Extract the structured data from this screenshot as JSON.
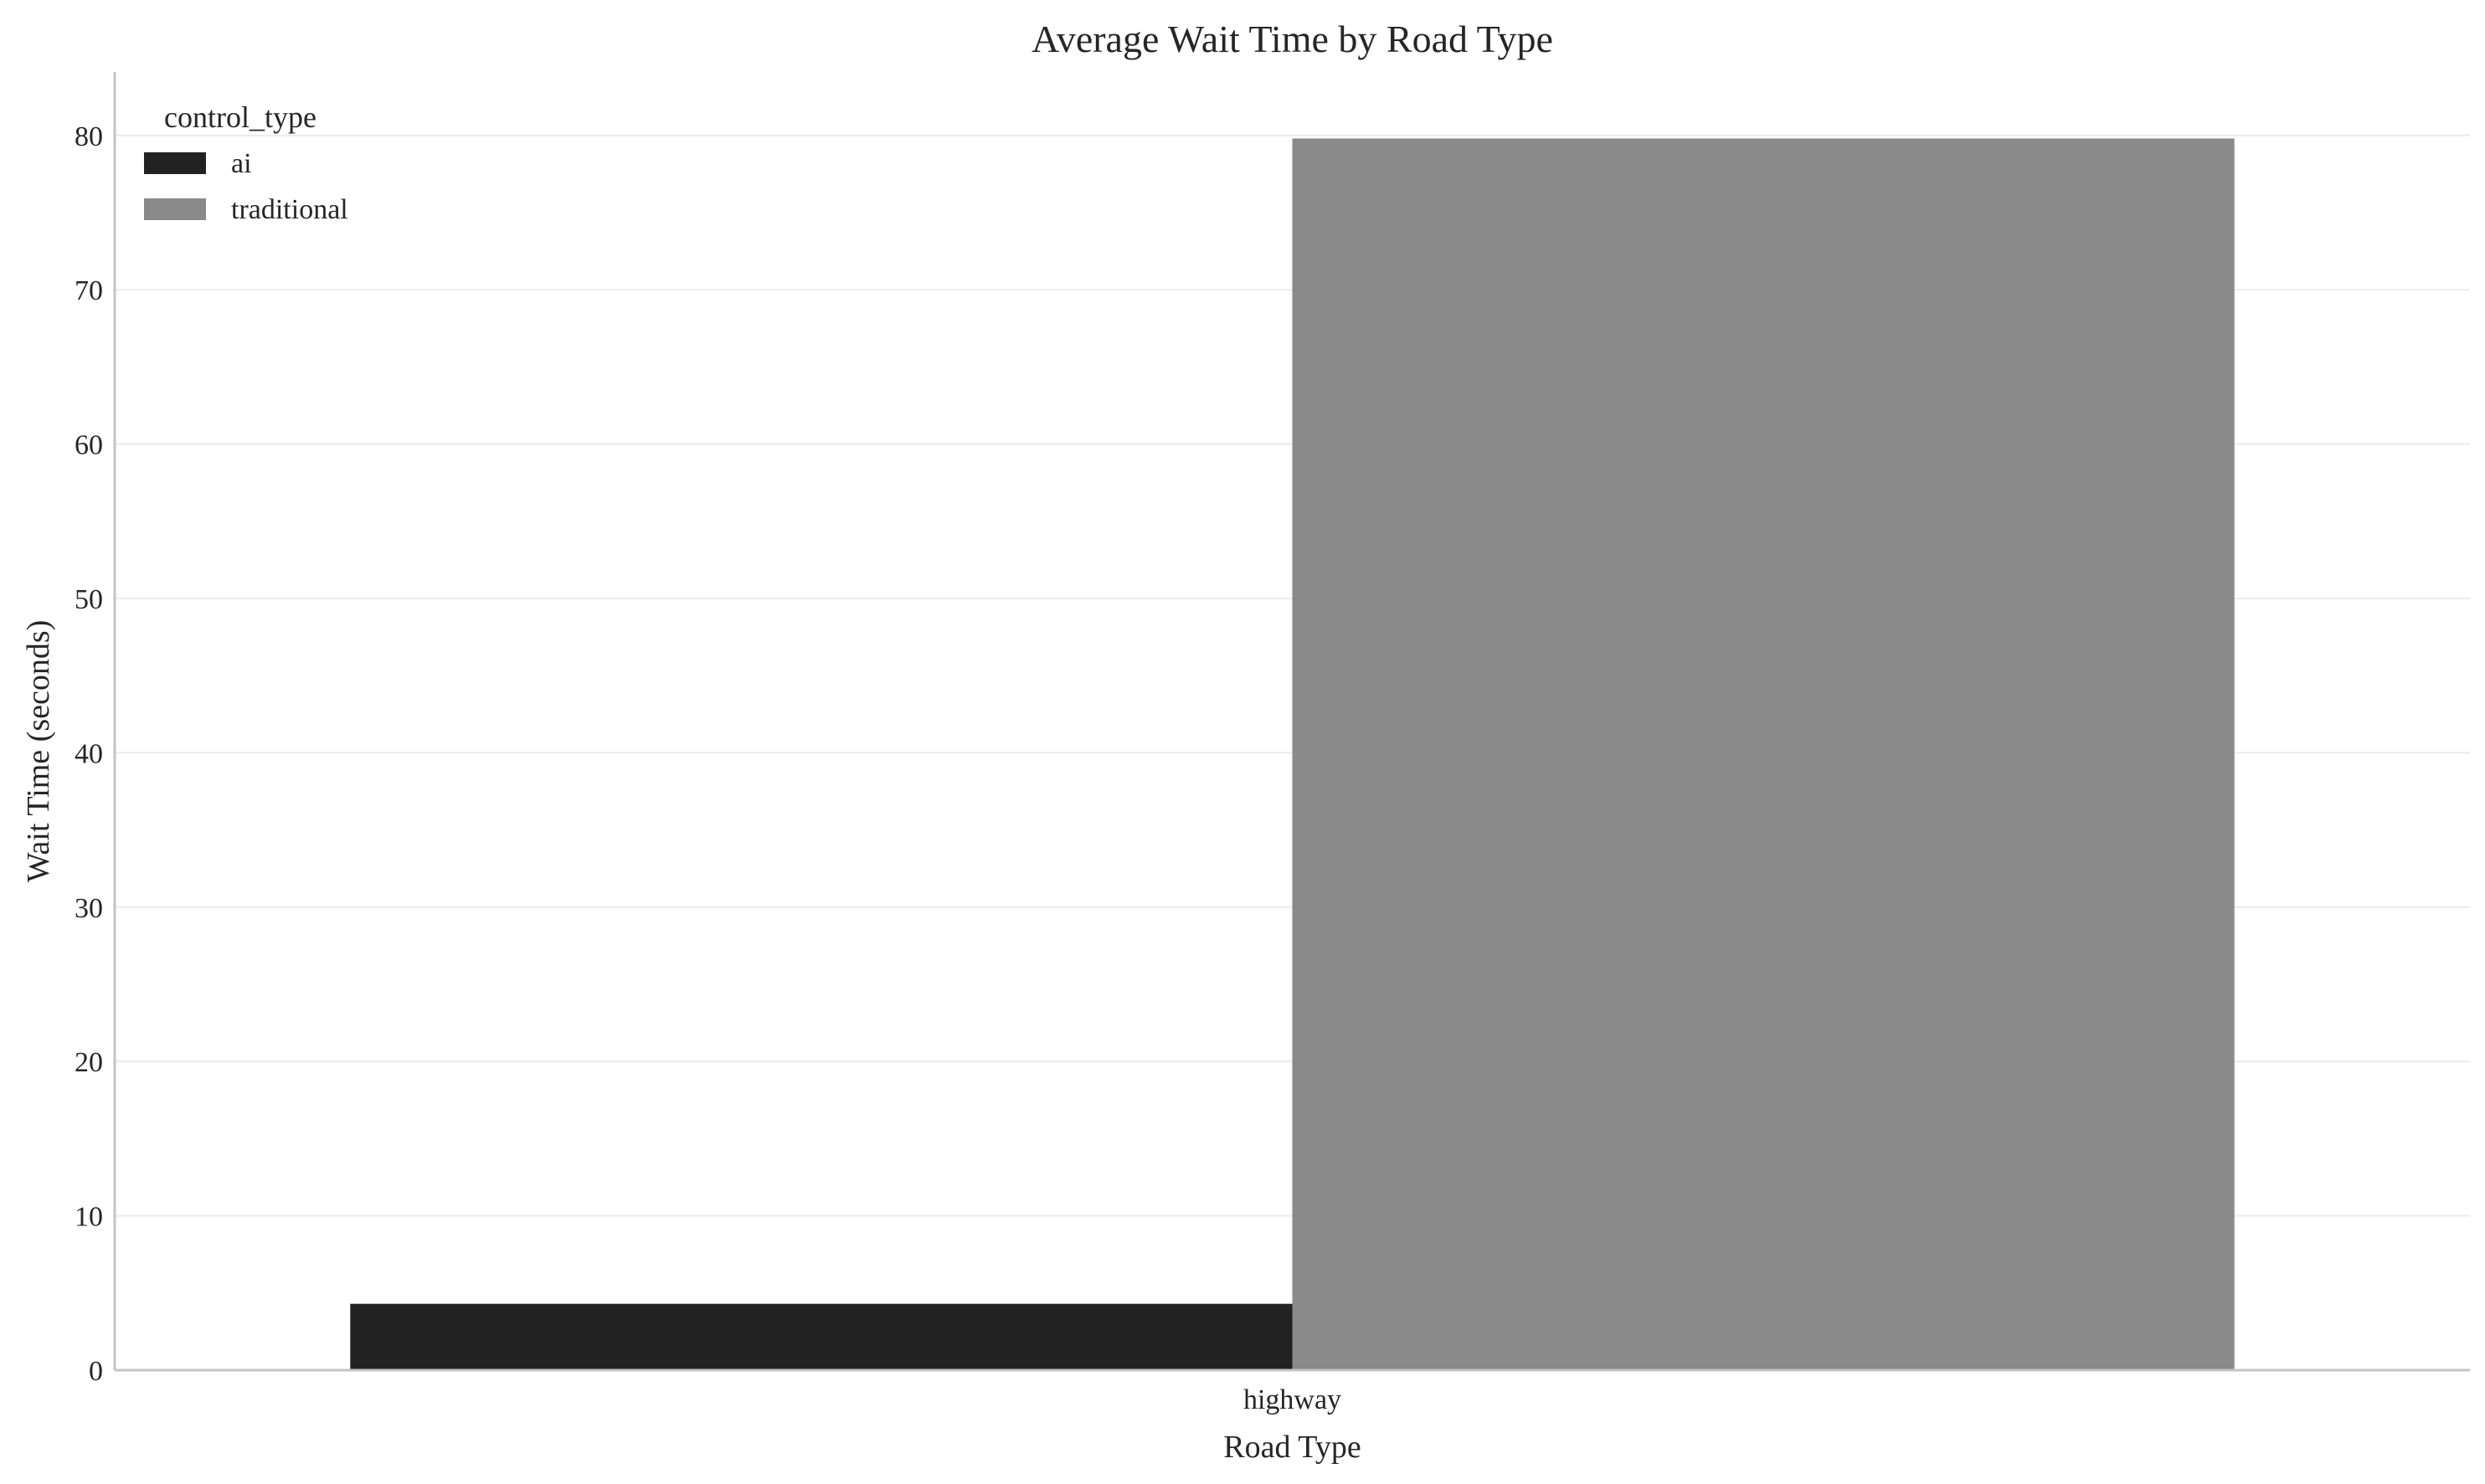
{
  "chart_data": {
    "type": "bar",
    "title": "Average Wait Time by Road Type",
    "xlabel": "Road Type",
    "ylabel": "Wait Time (seconds)",
    "categories": [
      "highway"
    ],
    "series": [
      {
        "name": "ai",
        "values": [
          4.3
        ],
        "color": "#222222"
      },
      {
        "name": "traditional",
        "values": [
          79.8
        ],
        "color": "#8a8a8a"
      }
    ],
    "ylim": [
      0,
      84
    ],
    "yticks": [
      0,
      10,
      20,
      30,
      40,
      50,
      60,
      70,
      80
    ],
    "grid": true,
    "grid_axis": "y",
    "legend": {
      "title": "control_type",
      "placement": "top-left"
    }
  }
}
